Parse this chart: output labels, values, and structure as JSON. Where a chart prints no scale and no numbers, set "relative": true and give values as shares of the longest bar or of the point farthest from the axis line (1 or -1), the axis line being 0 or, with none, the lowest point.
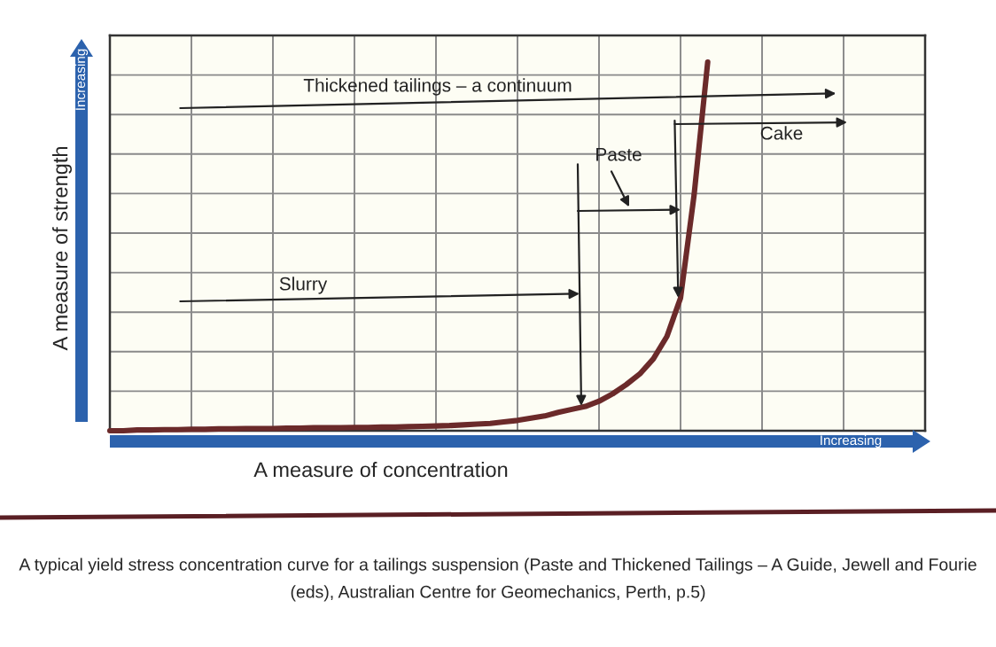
{
  "chart_data": {
    "type": "line",
    "relative": true,
    "xlabel": "A measure of concentration",
    "ylabel": "A measure of strength",
    "categories": [
      null,
      null,
      null,
      null,
      null,
      null,
      null,
      null,
      null,
      null,
      null,
      null,
      null,
      null,
      null,
      null,
      null,
      null,
      null,
      null,
      null,
      null,
      null,
      null,
      null,
      null,
      null,
      null,
      null,
      null,
      null,
      null,
      null,
      null,
      null,
      null,
      null,
      null,
      null,
      null,
      null,
      null,
      null,
      null,
      null,
      null,
      null,
      null,
      null,
      null,
      null,
      null,
      null,
      null,
      null,
      null,
      null,
      null,
      null,
      null,
      null
    ],
    "series": [
      {
        "color": "#6b2a2a",
        "values": [
          0.0,
          0.0,
          0.002,
          0.002,
          0.003,
          0.003,
          0.004,
          0.004,
          0.005,
          0.005,
          0.006,
          0.006,
          0.006,
          0.007,
          0.007,
          0.008,
          0.008,
          0.008,
          0.009,
          0.009,
          0.01,
          0.01,
          0.011,
          0.012,
          0.013,
          0.014,
          0.016,
          0.018,
          0.02,
          0.024,
          0.028,
          0.034,
          0.04,
          0.05,
          0.058,
          0.066,
          0.08,
          0.1,
          0.125,
          0.154,
          0.195,
          0.256,
          0.36,
          0.64,
          1.0,
          null,
          null,
          null,
          null,
          null,
          null,
          null,
          null,
          null,
          null,
          null,
          null,
          null,
          null,
          null,
          null
        ]
      }
    ],
    "grid": true,
    "marker": "none",
    "line_style": "solid",
    "tick_labels": false,
    "annotations": [
      "Thickened tailings – a continuum",
      "Cake",
      "Paste",
      "Slurry",
      "Increasing",
      "Increasing",
      "A typical yield stress concentration curve for a tailings suspension (Paste and Thickened Tailings – A Guide, Jewell and Fourie (eds), Australian Centre for Geomechanics, Perth, p.5)"
    ]
  }
}
